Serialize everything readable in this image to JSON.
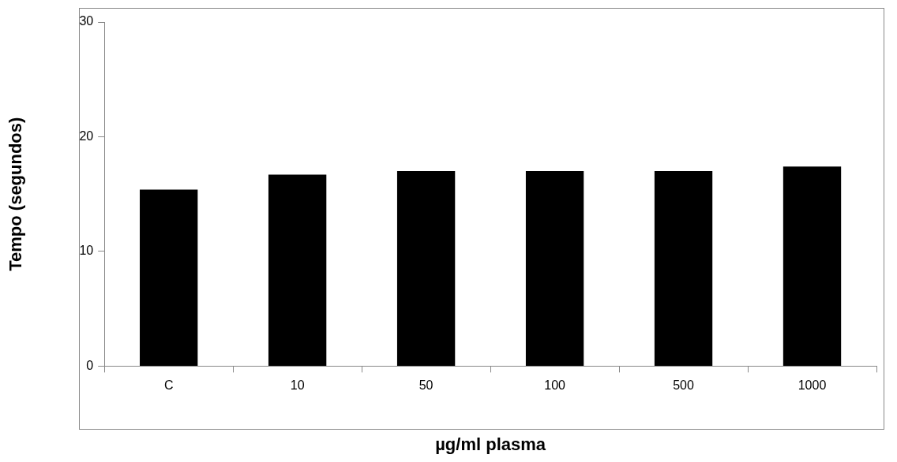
{
  "chart_data": {
    "type": "bar",
    "xlabel": "µg/ml plasma",
    "ylabel": "Tempo (segundos)",
    "categories": [
      "C",
      "10",
      "50",
      "100",
      "500",
      "1000"
    ],
    "values": [
      15.4,
      16.7,
      17,
      17,
      17,
      17.4
    ],
    "color": "#000000",
    "ylim": [
      0,
      30
    ],
    "yticks": [
      0,
      10,
      20,
      30
    ],
    "grid": false,
    "legend": false
  }
}
